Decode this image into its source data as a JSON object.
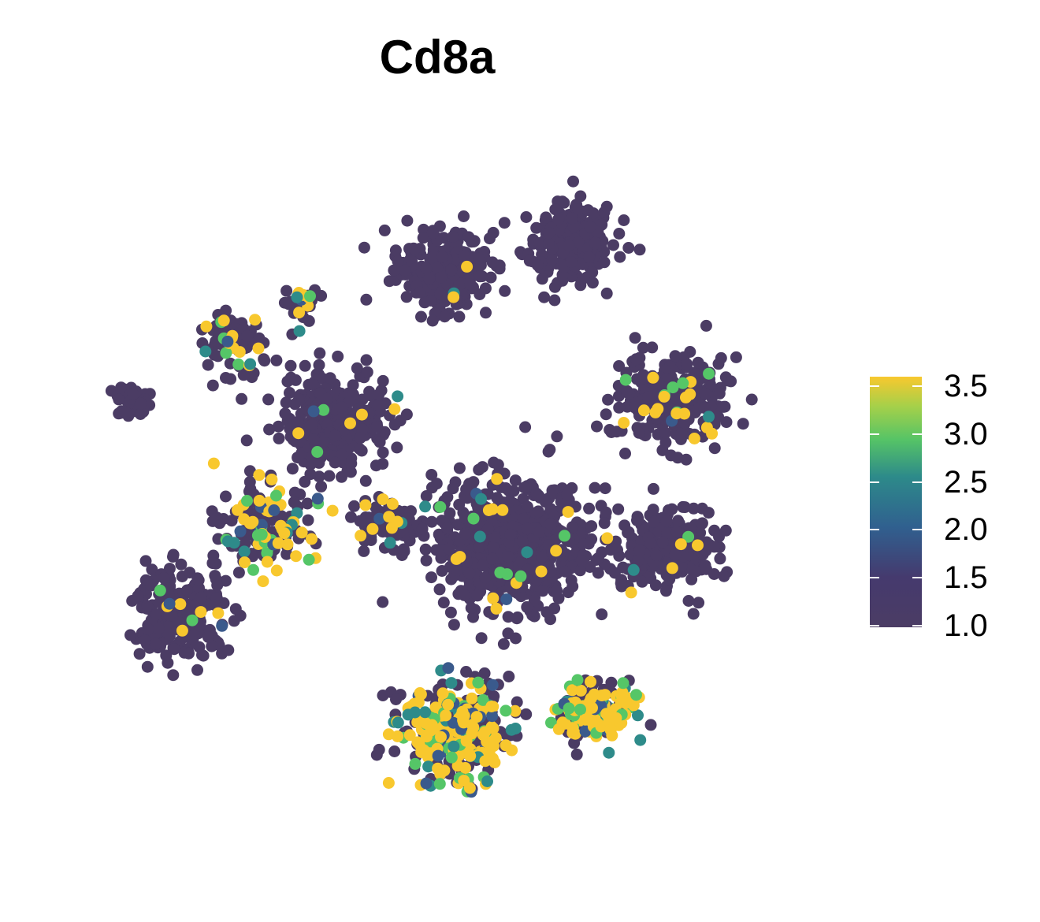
{
  "chart_data": {
    "type": "scatter",
    "title": "Cd8a",
    "xlabel": "",
    "ylabel": "",
    "grid": false,
    "axes_visible": false,
    "legend": {
      "type": "colorbar",
      "placement": "right",
      "min": 1.0,
      "max": 3.5,
      "tick_labels": [
        "3.5",
        "3.0",
        "2.5",
        "2.0",
        "1.5",
        "1.0"
      ],
      "tick_values": [
        3.5,
        3.0,
        2.5,
        2.0,
        1.5,
        1.0
      ]
    },
    "colormap": "viridis",
    "colors": {
      "low": "#4b3c64",
      "mid_low": "#3a5a8c",
      "mid": "#2e8b8a",
      "mid_high": "#55c667",
      "high": "#f8c82e"
    },
    "clusters": [
      {
        "label": "top-center",
        "cx": 0.5,
        "cy": 0.82,
        "n": 280,
        "spread": 0.7,
        "high_frac": 0.01
      },
      {
        "label": "top-right",
        "cx": 0.68,
        "cy": 0.86,
        "n": 260,
        "spread": 0.7,
        "high_frac": 0.0
      },
      {
        "label": "left-small",
        "cx": 0.2,
        "cy": 0.72,
        "n": 90,
        "spread": 0.5,
        "high_frac": 0.15
      },
      {
        "label": "far-left",
        "cx": 0.06,
        "cy": 0.63,
        "n": 40,
        "spread": 0.3,
        "high_frac": 0.0
      },
      {
        "label": "upper-left-tiny",
        "cx": 0.3,
        "cy": 0.77,
        "n": 30,
        "spread": 0.3,
        "high_frac": 0.2
      },
      {
        "label": "left-middle",
        "cx": 0.35,
        "cy": 0.6,
        "n": 300,
        "spread": 0.9,
        "high_frac": 0.03
      },
      {
        "label": "right-upper",
        "cx": 0.83,
        "cy": 0.63,
        "n": 260,
        "spread": 0.8,
        "high_frac": 0.1
      },
      {
        "label": "center",
        "cx": 0.6,
        "cy": 0.42,
        "n": 700,
        "spread": 1.2,
        "high_frac": 0.03
      },
      {
        "label": "right-lower",
        "cx": 0.82,
        "cy": 0.42,
        "n": 220,
        "spread": 0.8,
        "high_frac": 0.03
      },
      {
        "label": "left-bottom",
        "cx": 0.13,
        "cy": 0.32,
        "n": 220,
        "spread": 0.8,
        "high_frac": 0.03
      },
      {
        "label": "left-strip",
        "cx": 0.25,
        "cy": 0.45,
        "n": 160,
        "spread": 0.7,
        "high_frac": 0.45
      },
      {
        "label": "bottom-center",
        "cx": 0.52,
        "cy": 0.15,
        "n": 380,
        "spread": 0.9,
        "high_frac": 0.55
      },
      {
        "label": "bottom-right",
        "cx": 0.72,
        "cy": 0.18,
        "n": 170,
        "spread": 0.6,
        "high_frac": 0.6
      },
      {
        "label": "mid-small",
        "cx": 0.42,
        "cy": 0.45,
        "n": 80,
        "spread": 0.5,
        "high_frac": 0.12
      }
    ]
  }
}
